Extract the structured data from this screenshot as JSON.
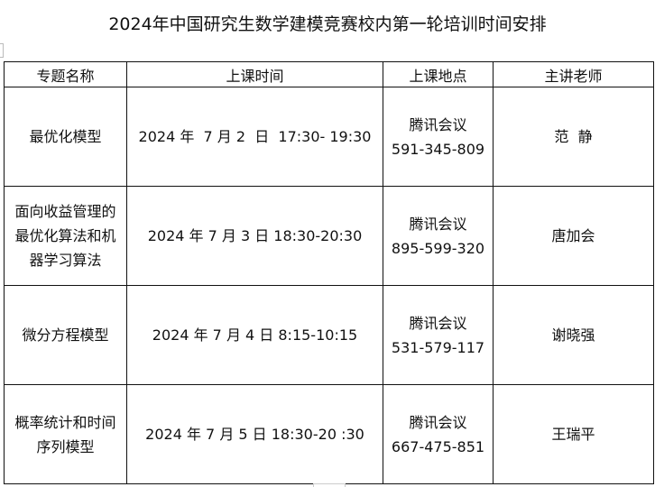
{
  "title": "2024年中国研究生数学建模竞赛校内第一轮培训时间安排",
  "headers": [
    "专题名称",
    "上课时间",
    "上课地点",
    "主讲老师"
  ],
  "rows": [
    {
      "topic": "最优化模型",
      "time": "2024 年  7 月 2  日  17:30- 19:30",
      "platform": "腾讯会议",
      "meeting_id": "591-345-809",
      "teacher": "范  静"
    },
    {
      "topic": "面向收益管理的最优化算法和机器学习算法",
      "time": "2024 年 7 月 3 日 18:30-20:30",
      "platform": "腾讯会议",
      "meeting_id": "895-599-320",
      "teacher": "唐加会"
    },
    {
      "topic": "微分方程模型",
      "time": "2024 年 7 月 4 日 8:15-10:15",
      "platform": "腾讯会议",
      "meeting_id": "531-579-117",
      "teacher": "谢晓强"
    },
    {
      "topic": "概率统计和时间序列模型",
      "time": "2024 年 7 月 5 日 18:30-20 :30",
      "platform": "腾讯会议",
      "meeting_id": "667-475-851",
      "teacher": "王瑞平"
    }
  ]
}
